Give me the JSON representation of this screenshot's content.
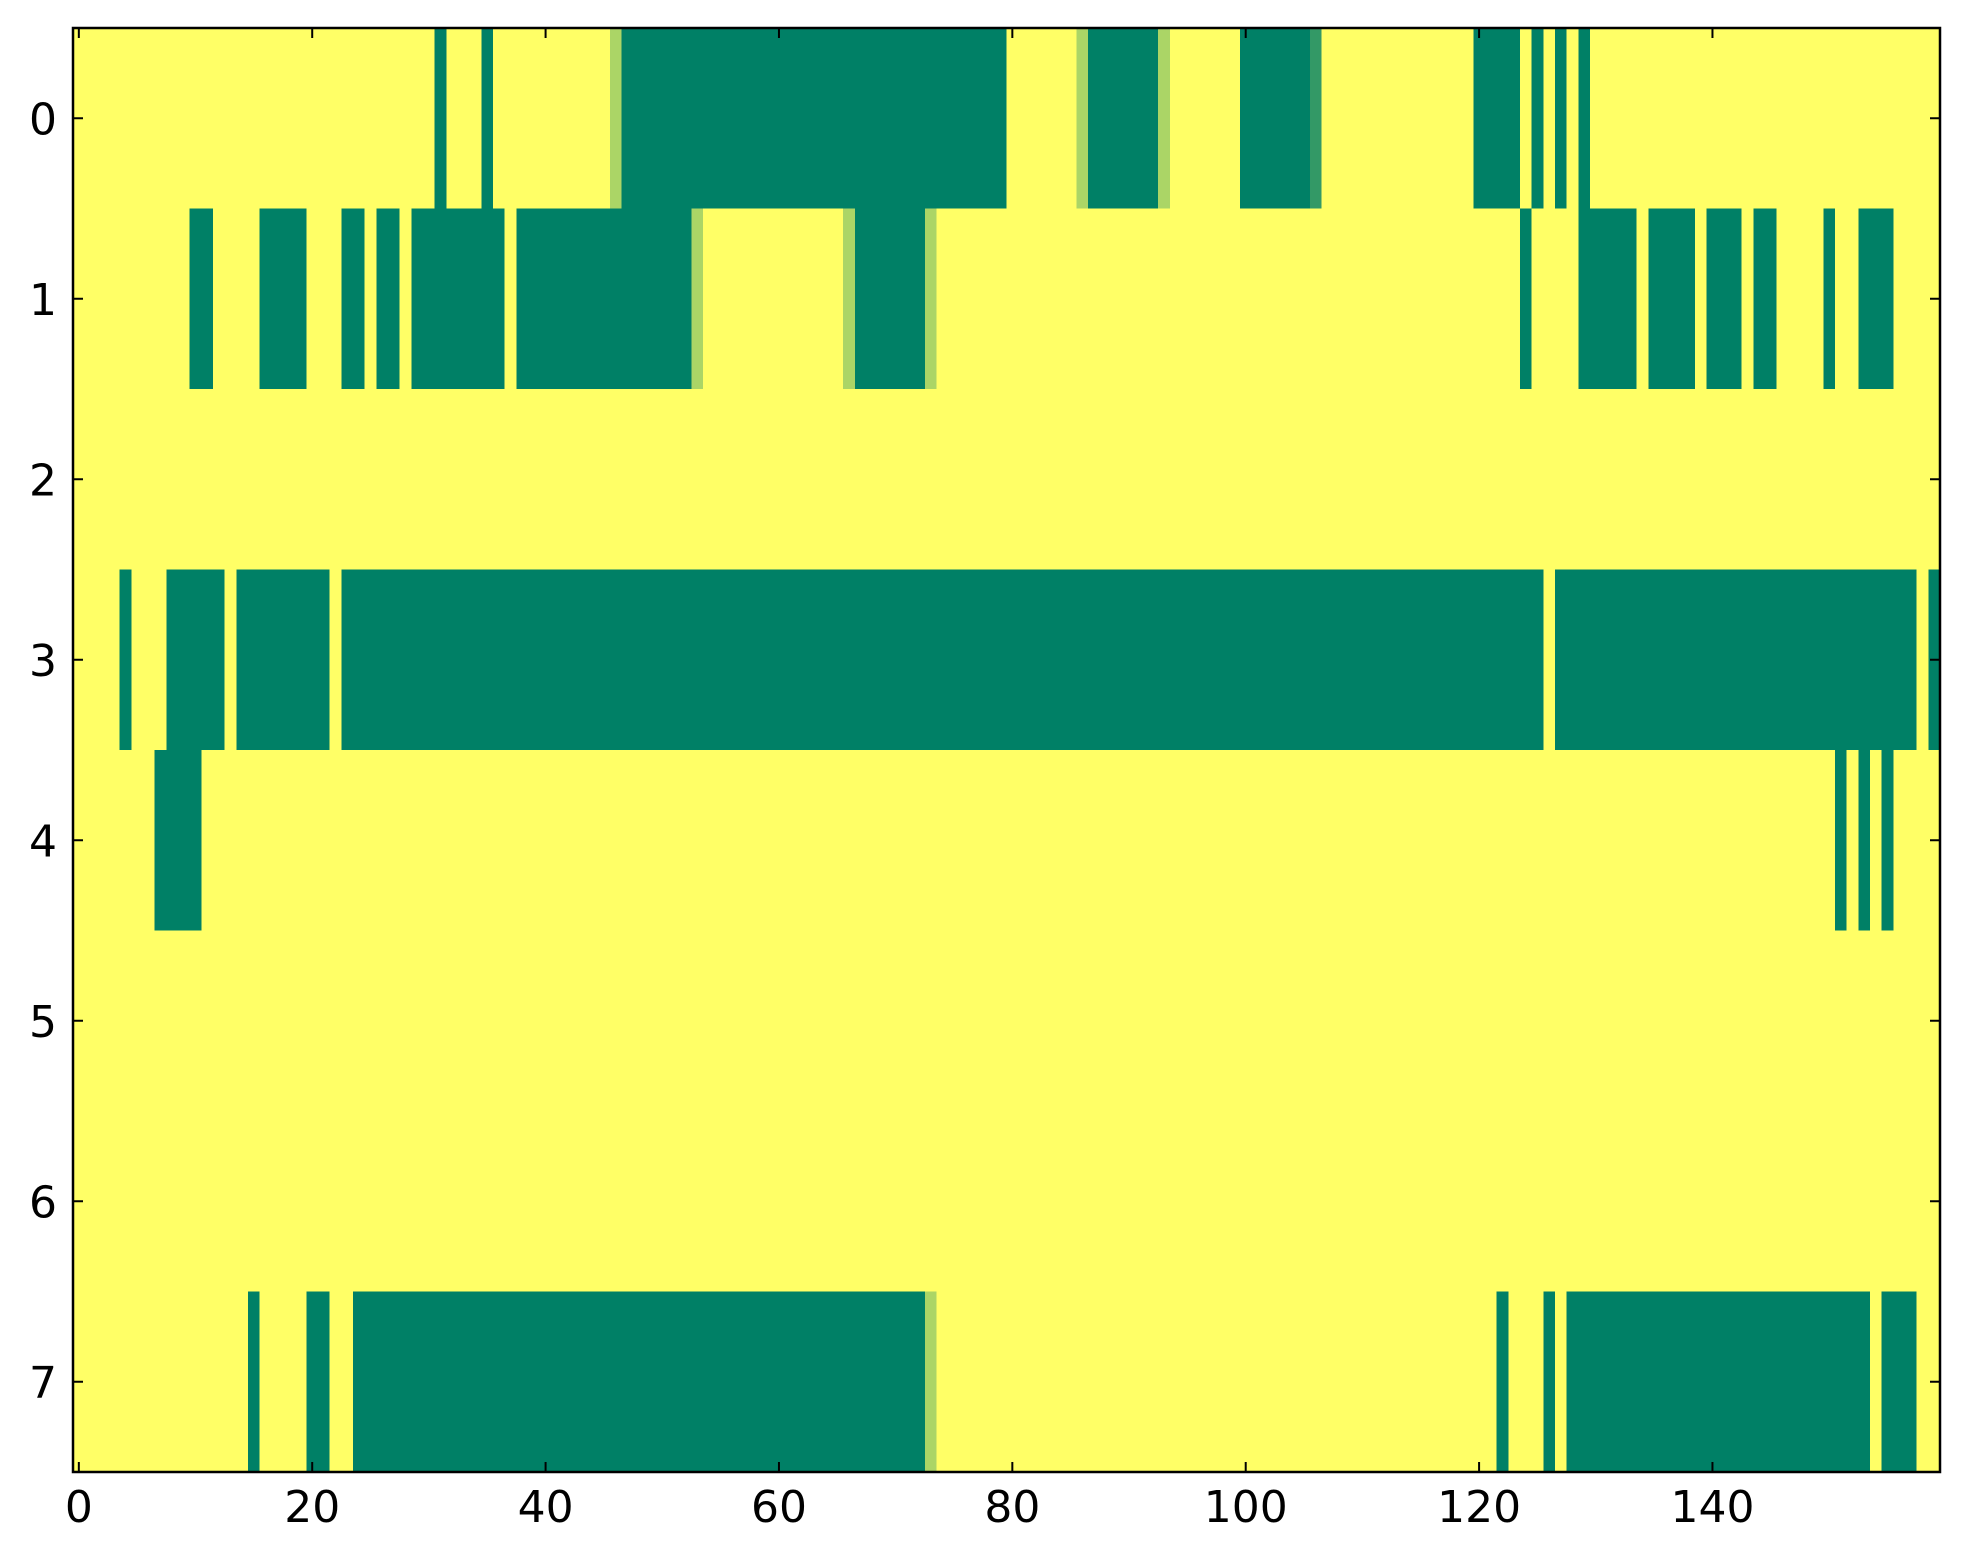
{
  "chart_data": {
    "type": "heatmap",
    "xlim": [
      -0.5,
      159.5
    ],
    "ylim": [
      7.5,
      -0.5
    ],
    "xticks": [
      0,
      20,
      40,
      60,
      80,
      100,
      120,
      140
    ],
    "yticks": [
      0,
      1,
      2,
      3,
      4,
      5,
      6,
      7
    ],
    "zlim": [
      0,
      1
    ],
    "colormap": [
      "#ffff66",
      "#008066"
    ],
    "z": [
      [
        0,
        0,
        0,
        0,
        0,
        0,
        0,
        0,
        0,
        0,
        0,
        0,
        0,
        0,
        0,
        0,
        0,
        0,
        0,
        0,
        0,
        0,
        0,
        0,
        0,
        0,
        0,
        0,
        0,
        0,
        0,
        1,
        0,
        0,
        0,
        1,
        0,
        0,
        0,
        0,
        0,
        0,
        0,
        0,
        0,
        0,
        0.33,
        1,
        1,
        1,
        1,
        1,
        1,
        1,
        1,
        1,
        1,
        1,
        1,
        1,
        1,
        1,
        1,
        1,
        1,
        1,
        1,
        1,
        1,
        1,
        1,
        1,
        1,
        1,
        1,
        1,
        1,
        1,
        1,
        1,
        0,
        0,
        0,
        0,
        0,
        0,
        0.33,
        1,
        1,
        1,
        1,
        1,
        1,
        0.33,
        0,
        0,
        0,
        0,
        0,
        0,
        1,
        1,
        1,
        1,
        1,
        1,
        0.8,
        0,
        0,
        0,
        0,
        0,
        0,
        0,
        0,
        0,
        0,
        0,
        0,
        0,
        1,
        1,
        1,
        1,
        0,
        1,
        0,
        1,
        0,
        1,
        0,
        0,
        0,
        0,
        0,
        0,
        0,
        0,
        0,
        0,
        0,
        0,
        0,
        0,
        0,
        0,
        0,
        0,
        0,
        0,
        0,
        0,
        0,
        0,
        0,
        0,
        0,
        0,
        0,
        0
      ],
      [
        0,
        0,
        0,
        0,
        0,
        0,
        0,
        0,
        0,
        0,
        1,
        1,
        0,
        0,
        0,
        0,
        1,
        1,
        1,
        1,
        0,
        0,
        0,
        1,
        1,
        0,
        1,
        1,
        0,
        1,
        1,
        1,
        1,
        1,
        1,
        1,
        1,
        0,
        1,
        1,
        1,
        1,
        1,
        1,
        1,
        1,
        1,
        1,
        1,
        1,
        1,
        1,
        1,
        0.33,
        0,
        0,
        0,
        0,
        0,
        0,
        0,
        0,
        0,
        0,
        0,
        0,
        0.33,
        1,
        1,
        1,
        1,
        1,
        1,
        0.33,
        0,
        0,
        0,
        0,
        0,
        0,
        0,
        0,
        0,
        0,
        0,
        0,
        0,
        0,
        0,
        0,
        0,
        0,
        0,
        0,
        0,
        0,
        0,
        0,
        0,
        0,
        0,
        0,
        0,
        0,
        0,
        0,
        0,
        0,
        0,
        0,
        0,
        0,
        0,
        0,
        0,
        0,
        0,
        0,
        0,
        0,
        0,
        0,
        0,
        0,
        1,
        0,
        0,
        0,
        0,
        1,
        1,
        1,
        1,
        1,
        0,
        1,
        1,
        1,
        1,
        0,
        1,
        1,
        1,
        0,
        1,
        1,
        0,
        0,
        0,
        0,
        1,
        0,
        0,
        1,
        1,
        1,
        0,
        0,
        0,
        0
      ],
      [
        0,
        0,
        0,
        0,
        0,
        0,
        0,
        0,
        0,
        0,
        0,
        0,
        0,
        0,
        0,
        0,
        0,
        0,
        0,
        0,
        0,
        0,
        0,
        0,
        0,
        0,
        0,
        0,
        0,
        0,
        0,
        0,
        0,
        0,
        0,
        0,
        0,
        0,
        0,
        0,
        0,
        0,
        0,
        0,
        0,
        0,
        0,
        0,
        0,
        0,
        0,
        0,
        0,
        0,
        0,
        0,
        0,
        0,
        0,
        0,
        0,
        0,
        0,
        0,
        0,
        0,
        0,
        0,
        0,
        0,
        0,
        0,
        0,
        0,
        0,
        0,
        0,
        0,
        0,
        0,
        0,
        0,
        0,
        0,
        0,
        0,
        0,
        0,
        0,
        0,
        0,
        0,
        0,
        0,
        0,
        0,
        0,
        0,
        0,
        0,
        0,
        0,
        0,
        0,
        0,
        0,
        0,
        0,
        0,
        0,
        0,
        0,
        0,
        0,
        0,
        0,
        0,
        0,
        0,
        0,
        0,
        0,
        0,
        0,
        0,
        0,
        0,
        0,
        0,
        0,
        0,
        0,
        0,
        0,
        0,
        0,
        0,
        0,
        0,
        0,
        0,
        0,
        0,
        0,
        0,
        0,
        0,
        0,
        0,
        0,
        0,
        0,
        0,
        0,
        0,
        0,
        0,
        0,
        0,
        0
      ],
      [
        0,
        0,
        0,
        0,
        1,
        0,
        0,
        0,
        1,
        1,
        1,
        1,
        1,
        0,
        1,
        1,
        1,
        1,
        1,
        1,
        1,
        1,
        0,
        1,
        1,
        1,
        1,
        1,
        1,
        1,
        1,
        1,
        1,
        1,
        1,
        1,
        1,
        1,
        1,
        1,
        1,
        1,
        1,
        1,
        1,
        1,
        1,
        1,
        1,
        1,
        1,
        1,
        1,
        1,
        1,
        1,
        1,
        1,
        1,
        1,
        1,
        1,
        1,
        1,
        1,
        1,
        1,
        1,
        1,
        1,
        1,
        1,
        1,
        1,
        1,
        1,
        1,
        1,
        1,
        1,
        1,
        1,
        1,
        1,
        1,
        1,
        1,
        1,
        1,
        1,
        1,
        1,
        1,
        1,
        1,
        1,
        1,
        1,
        1,
        1,
        1,
        1,
        1,
        1,
        1,
        1,
        1,
        1,
        1,
        1,
        1,
        1,
        1,
        1,
        1,
        1,
        1,
        1,
        1,
        1,
        1,
        1,
        1,
        1,
        1,
        1,
        0,
        1,
        1,
        1,
        1,
        1,
        1,
        1,
        1,
        1,
        1,
        1,
        1,
        1,
        1,
        1,
        1,
        1,
        1,
        1,
        1,
        1,
        1,
        1,
        1,
        1,
        1,
        1,
        1,
        1,
        1,
        1,
        0,
        1
      ],
      [
        0,
        0,
        0,
        0,
        0,
        0,
        0,
        1,
        1,
        1,
        1,
        0,
        0,
        0,
        0,
        0,
        0,
        0,
        0,
        0,
        0,
        0,
        0,
        0,
        0,
        0,
        0,
        0,
        0,
        0,
        0,
        0,
        0,
        0,
        0,
        0,
        0,
        0,
        0,
        0,
        0,
        0,
        0,
        0,
        0,
        0,
        0,
        0,
        0,
        0,
        0,
        0,
        0,
        0,
        0,
        0,
        0,
        0,
        0,
        0,
        0,
        0,
        0,
        0,
        0,
        0,
        0,
        0,
        0,
        0,
        0,
        0,
        0,
        0,
        0,
        0,
        0,
        0,
        0,
        0,
        0,
        0,
        0,
        0,
        0,
        0,
        0,
        0,
        0,
        0,
        0,
        0,
        0,
        0,
        0,
        0,
        0,
        0,
        0,
        0,
        0,
        0,
        0,
        0,
        0,
        0,
        0,
        0,
        0,
        0,
        0,
        0,
        0,
        0,
        0,
        0,
        0,
        0,
        0,
        0,
        0,
        0,
        0,
        0,
        0,
        0,
        0,
        0,
        0,
        0,
        0,
        0,
        0,
        0,
        0,
        0,
        0,
        0,
        0,
        0,
        0,
        0,
        0,
        0,
        0,
        0,
        0,
        0,
        0,
        0,
        0,
        1,
        0,
        1,
        0,
        1,
        0,
        0,
        0,
        0
      ],
      [
        0,
        0,
        0,
        0,
        0,
        0,
        0,
        0,
        0,
        0,
        0,
        0,
        0,
        0,
        0,
        0,
        0,
        0,
        0,
        0,
        0,
        0,
        0,
        0,
        0,
        0,
        0,
        0,
        0,
        0,
        0,
        0,
        0,
        0,
        0,
        0,
        0,
        0,
        0,
        0,
        0,
        0,
        0,
        0,
        0,
        0,
        0,
        0,
        0,
        0,
        0,
        0,
        0,
        0,
        0,
        0,
        0,
        0,
        0,
        0,
        0,
        0,
        0,
        0,
        0,
        0,
        0,
        0,
        0,
        0,
        0,
        0,
        0,
        0,
        0,
        0,
        0,
        0,
        0,
        0,
        0,
        0,
        0,
        0,
        0,
        0,
        0,
        0,
        0,
        0,
        0,
        0,
        0,
        0,
        0,
        0,
        0,
        0,
        0,
        0,
        0,
        0,
        0,
        0,
        0,
        0,
        0,
        0,
        0,
        0,
        0,
        0,
        0,
        0,
        0,
        0,
        0,
        0,
        0,
        0,
        0,
        0,
        0,
        0,
        0,
        0,
        0,
        0,
        0,
        0,
        0,
        0,
        0,
        0,
        0,
        0,
        0,
        0,
        0,
        0,
        0,
        0,
        0,
        0,
        0,
        0,
        0,
        0,
        0,
        0,
        0,
        0,
        0,
        0,
        0,
        0,
        0,
        0,
        0,
        0
      ],
      [
        0,
        0,
        0,
        0,
        0,
        0,
        0,
        0,
        0,
        0,
        0,
        0,
        0,
        0,
        0,
        0,
        0,
        0,
        0,
        0,
        0,
        0,
        0,
        0,
        0,
        0,
        0,
        0,
        0,
        0,
        0,
        0,
        0,
        0,
        0,
        0,
        0,
        0,
        0,
        0,
        0,
        0,
        0,
        0,
        0,
        0,
        0,
        0,
        0,
        0,
        0,
        0,
        0,
        0,
        0,
        0,
        0,
        0,
        0,
        0,
        0,
        0,
        0,
        0,
        0,
        0,
        0,
        0,
        0,
        0,
        0,
        0,
        0,
        0,
        0,
        0,
        0,
        0,
        0,
        0,
        0,
        0,
        0,
        0,
        0,
        0,
        0,
        0,
        0,
        0,
        0,
        0,
        0,
        0,
        0,
        0,
        0,
        0,
        0,
        0,
        0,
        0,
        0,
        0,
        0,
        0,
        0,
        0,
        0,
        0,
        0,
        0,
        0,
        0,
        0,
        0,
        0,
        0,
        0,
        0,
        0,
        0,
        0,
        0,
        0,
        0,
        0,
        0,
        0,
        0,
        0,
        0,
        0,
        0,
        0,
        0,
        0,
        0,
        0,
        0,
        0,
        0,
        0,
        0,
        0,
        0,
        0,
        0,
        0,
        0,
        0,
        0,
        0,
        0,
        0,
        0,
        0,
        0,
        0,
        0
      ],
      [
        0,
        0,
        0,
        0,
        0,
        0,
        0,
        0,
        0,
        0,
        0,
        0,
        0,
        0,
        0,
        1,
        0,
        0,
        0,
        0,
        1,
        1,
        0,
        0,
        1,
        1,
        1,
        1,
        1,
        1,
        1,
        1,
        1,
        1,
        1,
        1,
        1,
        1,
        1,
        1,
        1,
        1,
        1,
        1,
        1,
        1,
        1,
        1,
        1,
        1,
        1,
        1,
        1,
        1,
        1,
        1,
        1,
        1,
        1,
        1,
        1,
        1,
        1,
        1,
        1,
        1,
        1,
        1,
        1,
        1,
        1,
        1,
        1,
        0.33,
        0,
        0,
        0,
        0,
        0,
        0,
        0,
        0,
        0,
        0,
        0,
        0,
        0,
        0,
        0,
        0,
        0,
        0,
        0,
        0,
        0,
        0,
        0,
        0,
        0,
        0,
        0,
        0,
        0,
        0,
        0,
        0,
        0,
        0,
        0,
        0,
        0,
        0,
        0,
        0,
        0,
        0,
        0,
        0,
        0,
        0,
        0,
        0,
        1,
        0,
        0,
        0,
        1,
        0,
        1,
        1,
        1,
        1,
        1,
        1,
        1,
        1,
        1,
        1,
        1,
        1,
        1,
        1,
        1,
        1,
        1,
        1,
        1,
        1,
        1,
        1,
        1,
        1,
        1,
        1,
        0,
        1,
        1,
        1,
        0,
        0
      ]
    ]
  }
}
